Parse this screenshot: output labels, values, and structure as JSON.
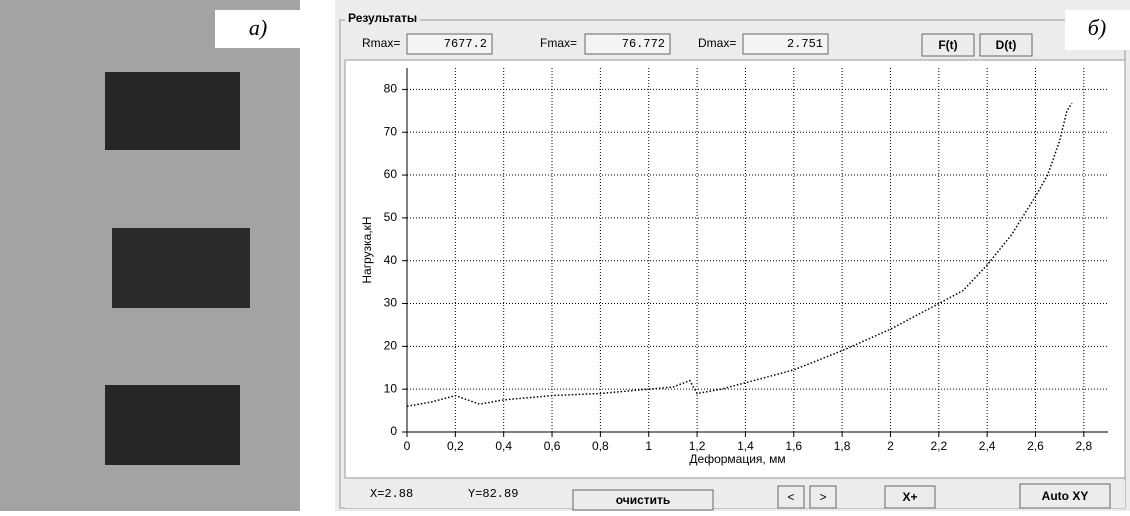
{
  "left_label": "а)",
  "right_label": "б)",
  "group_title": "Результаты",
  "readouts": [
    {
      "label": "Rmax=",
      "value": "7677.2"
    },
    {
      "label": "Fmax=",
      "value": "76.772"
    },
    {
      "label": "Dmax=",
      "value": "2.751"
    }
  ],
  "buttons_top": [
    "F(t)",
    "D(t)"
  ],
  "status": {
    "x": "X=2.88",
    "y": "Y=82.89"
  },
  "buttons_bottom": [
    "очистить",
    "<",
    ">",
    "X+",
    "Auto XY"
  ],
  "chart_data": {
    "type": "line",
    "x_label": "Деформация, мм",
    "y_label": "Нагрузка,кН",
    "xlim": [
      0,
      2.9
    ],
    "ylim": [
      0,
      85
    ],
    "xticks": [
      0,
      {
        "value": 0.2,
        "label": "0,2"
      },
      {
        "value": 0.4,
        "label": "0,4"
      },
      {
        "value": 0.6,
        "label": "0,6"
      },
      {
        "value": 0.8,
        "label": "0,8"
      },
      1,
      {
        "value": 1.2,
        "label": "1,2"
      },
      {
        "value": 1.4,
        "label": "1,4"
      },
      {
        "value": 1.6,
        "label": "1,6"
      },
      {
        "value": 1.8,
        "label": "1,8"
      },
      2,
      {
        "value": 2.2,
        "label": "2,2"
      },
      {
        "value": 2.4,
        "label": "2,4"
      },
      {
        "value": 2.6,
        "label": "2,6"
      },
      {
        "value": 2.8,
        "label": "2,8"
      }
    ],
    "yticks": [
      0,
      10,
      20,
      30,
      40,
      50,
      60,
      70,
      80
    ],
    "grid": true,
    "series": [
      {
        "color": "#000000",
        "x": [
          0,
          0.1,
          0.2,
          0.25,
          0.3,
          0.4,
          0.6,
          0.8,
          1.0,
          1.1,
          1.17,
          1.2,
          1.3,
          1.4,
          1.6,
          1.8,
          2.0,
          2.2,
          2.3,
          2.4,
          2.5,
          2.6,
          2.65,
          2.7,
          2.73,
          2.751
        ],
        "values": [
          6,
          7,
          8.5,
          7.5,
          6.5,
          7.5,
          8.5,
          9,
          10,
          10.5,
          12,
          9,
          10,
          11.5,
          14.5,
          19,
          24,
          30,
          33,
          39,
          46,
          55,
          60,
          68,
          75,
          76.772
        ]
      }
    ]
  }
}
